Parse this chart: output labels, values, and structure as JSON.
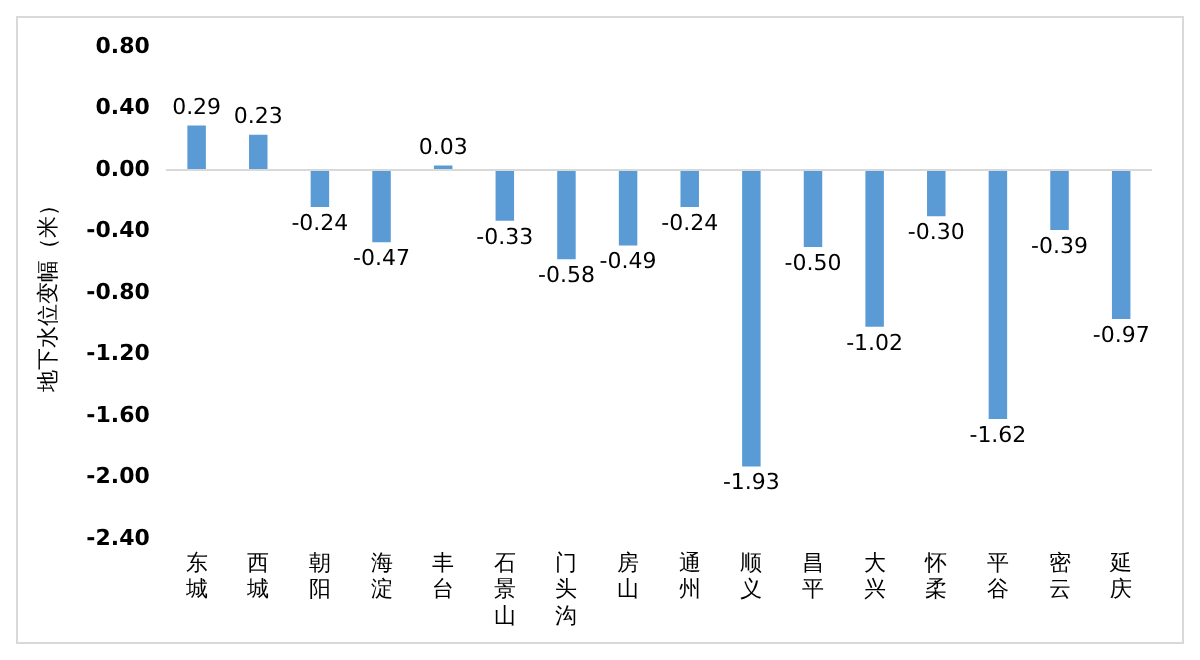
{
  "chart_data": {
    "type": "bar",
    "ylabel": "地下水位变幅（米）",
    "categories": [
      "东城",
      "西城",
      "朝阳",
      "海淀",
      "丰台",
      "石景山",
      "门头沟",
      "房山",
      "通州",
      "顺义",
      "昌平",
      "大兴",
      "怀柔",
      "平谷",
      "密云",
      "延庆"
    ],
    "values": [
      0.29,
      0.23,
      -0.24,
      -0.47,
      0.03,
      -0.33,
      -0.58,
      -0.49,
      -0.24,
      -1.93,
      -0.5,
      -1.02,
      -0.3,
      -1.62,
      -0.39,
      -0.97
    ],
    "value_labels": [
      "0.29",
      "0.23",
      "-0.24",
      "-0.47",
      "0.03",
      "-0.33",
      "-0.58",
      "-0.49",
      "-0.24",
      "-1.93",
      "-0.50",
      "-1.02",
      "-0.30",
      "-1.62",
      "-0.39",
      "-0.97"
    ],
    "color": "#5b9bd5",
    "ylim": [
      -2.4,
      0.8
    ],
    "yticks": [
      {
        "value": 0.8,
        "label": "0.80"
      },
      {
        "value": 0.4,
        "label": "0.40"
      },
      {
        "value": 0,
        "label": "0.00"
      },
      {
        "value": -0.4,
        "label": "-0.40"
      },
      {
        "value": -0.8,
        "label": "-0.80"
      },
      {
        "value": -1.2,
        "label": "-1.20"
      },
      {
        "value": -1.6,
        "label": "-1.60"
      },
      {
        "value": -2,
        "label": "-2.00"
      },
      {
        "value": -2.4,
        "label": "-2.40"
      }
    ],
    "ref_lines": [
      {
        "axis": "y",
        "value": 0,
        "color": "#d9d9d9"
      }
    ],
    "legend": false
  }
}
